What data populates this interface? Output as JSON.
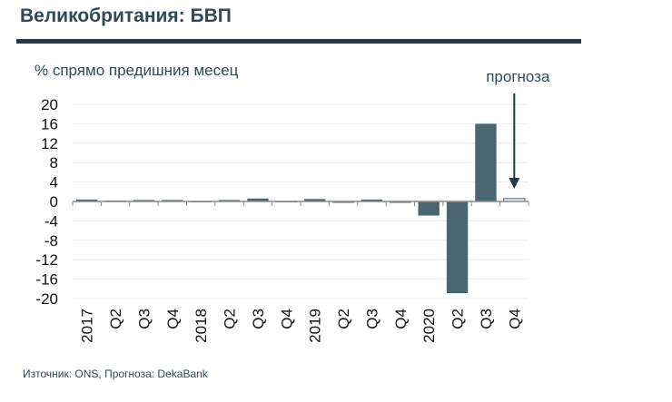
{
  "title": "Великобритания: БВП",
  "source": "Източник: ONS, Прогноза: DekaBank",
  "chart_data": {
    "type": "bar",
    "ylabel": "% спрямо предишния месец",
    "annotation": "прогноза",
    "ylim": [
      -20,
      20
    ],
    "yticks": [
      20,
      16,
      12,
      8,
      4,
      0,
      -4,
      -8,
      -12,
      -16,
      -20
    ],
    "grid": true,
    "categories": [
      "2017",
      "Q2",
      "Q3",
      "Q4",
      "2018",
      "Q2",
      "Q3",
      "Q4",
      "2019",
      "Q2",
      "Q3",
      "Q4",
      "2020",
      "Q2",
      "Q3",
      "Q4"
    ],
    "values": [
      0.4,
      0.2,
      0.3,
      0.3,
      0.1,
      0.3,
      0.6,
      0.1,
      0.5,
      -0.1,
      0.4,
      0.0,
      -2.9,
      -18.9,
      16.0,
      0.6
    ],
    "forecast_index": 15,
    "colors": {
      "bar": "#4a6670",
      "forecast": "#e3ecee",
      "axis": "#8a8a8a"
    }
  }
}
